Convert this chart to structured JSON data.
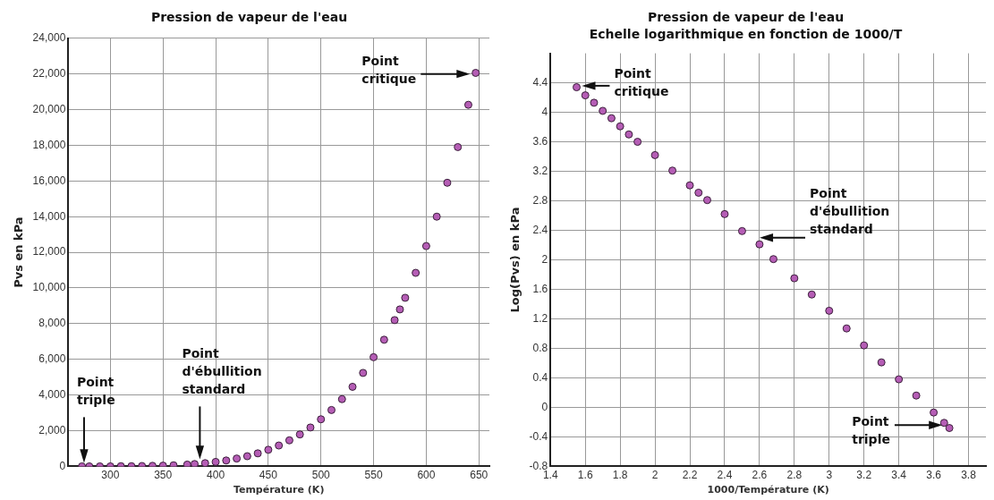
{
  "chart_data": [
    {
      "type": "scatter",
      "title": "Pression de vapeur de l'eau",
      "xlabel": "Température (K)",
      "ylabel": "Pvs en kPa",
      "color": "#b55db5",
      "marker": "circle",
      "grid": true,
      "legend": false,
      "x": [
        273,
        280,
        290,
        300,
        310,
        320,
        330,
        340,
        350,
        360,
        373,
        380,
        390,
        400,
        410,
        420,
        430,
        440,
        450,
        460,
        470,
        480,
        490,
        500,
        510,
        520,
        530,
        540,
        550,
        560,
        570,
        575,
        580,
        590,
        600,
        610,
        620,
        630,
        640,
        647
      ],
      "values": [
        0,
        0,
        0,
        0,
        10,
        10,
        20,
        30,
        40,
        60,
        100,
        130,
        180,
        250,
        330,
        440,
        570,
        730,
        930,
        1170,
        1460,
        1790,
        2180,
        2640,
        3160,
        3770,
        4460,
        5240,
        6120,
        7100,
        8200,
        8800,
        9450,
        10850,
        12350,
        14000,
        15900,
        17900,
        20270,
        22060
      ],
      "xlim": [
        260,
        660
      ],
      "xticks": [
        300,
        350,
        400,
        450,
        500,
        550,
        600,
        650
      ],
      "ylim": [
        0,
        24000
      ],
      "yticks": [
        0,
        {
          "value": 2000,
          "label": "2,000"
        },
        {
          "value": 4000,
          "label": "4,000"
        },
        {
          "value": 6000,
          "label": "6,000"
        },
        {
          "value": 8000,
          "label": "8,000"
        },
        {
          "value": 10000,
          "label": "10,000"
        },
        {
          "value": 12000,
          "label": "12,000"
        },
        {
          "value": 14000,
          "label": "14,000"
        },
        {
          "value": 16000,
          "label": "16,000"
        },
        {
          "value": 18000,
          "label": "18,000"
        },
        {
          "value": 20000,
          "label": "20,000"
        },
        {
          "value": 22000,
          "label": "22,000"
        },
        {
          "value": 24000,
          "label": "24,000"
        }
      ],
      "annotations": [
        {
          "text": "Point\ntriple",
          "x": 275,
          "y": 0
        },
        {
          "text": "Point\nd'ébullition\nstandard",
          "x": 385,
          "y": 200
        },
        {
          "text": "Point\ncritique",
          "x": 645,
          "y": 22000
        }
      ]
    },
    {
      "type": "scatter",
      "title": "Pression de vapeur de l'eau",
      "subtitle": "Echelle logarithmique en fonction de 1000/T",
      "xlabel": "1000/Température (K)",
      "ylabel": "Log(Pvs) en kPa",
      "color": "#b55db5",
      "marker": "circle",
      "grid": true,
      "legend": false,
      "x": [
        1.55,
        1.6,
        1.65,
        1.7,
        1.75,
        1.8,
        1.85,
        1.9,
        2,
        2.1,
        2.2,
        2.25,
        2.3,
        2.4,
        2.5,
        2.6,
        2.68,
        2.8,
        2.9,
        3,
        3.1,
        3.2,
        3.3,
        3.4,
        3.5,
        3.6,
        3.66,
        3.69
      ],
      "values": [
        4.34,
        4.23,
        4.13,
        4.02,
        3.92,
        3.81,
        3.7,
        3.6,
        3.42,
        3.21,
        3.01,
        2.91,
        2.81,
        2.62,
        2.39,
        2.21,
        2.01,
        1.75,
        1.53,
        1.31,
        1.07,
        0.84,
        0.61,
        0.38,
        0.16,
        -0.07,
        -0.21,
        -0.28
      ],
      "xlim": [
        1.4,
        3.9
      ],
      "xticks": [
        1.4,
        1.6,
        1.8,
        2,
        2.2,
        2.4,
        2.6,
        2.8,
        3,
        3.2,
        3.4,
        3.6,
        3.8
      ],
      "ylim": [
        -0.8,
        4.8
      ],
      "yticks": [
        -0.8,
        -0.4,
        0,
        0.4,
        0.8,
        1.2,
        1.6,
        2,
        2.4,
        2.8,
        3.2,
        3.6,
        4,
        4.4
      ],
      "annotations": [
        {
          "text": "Point\ncritique",
          "x": 1.56,
          "y": 4.36
        },
        {
          "text": "Point\nd'ébullition\nstandard",
          "x": 2.58,
          "y": 2.3
        },
        {
          "text": "Point\ntriple",
          "x": 3.67,
          "y": -0.24
        }
      ]
    }
  ]
}
